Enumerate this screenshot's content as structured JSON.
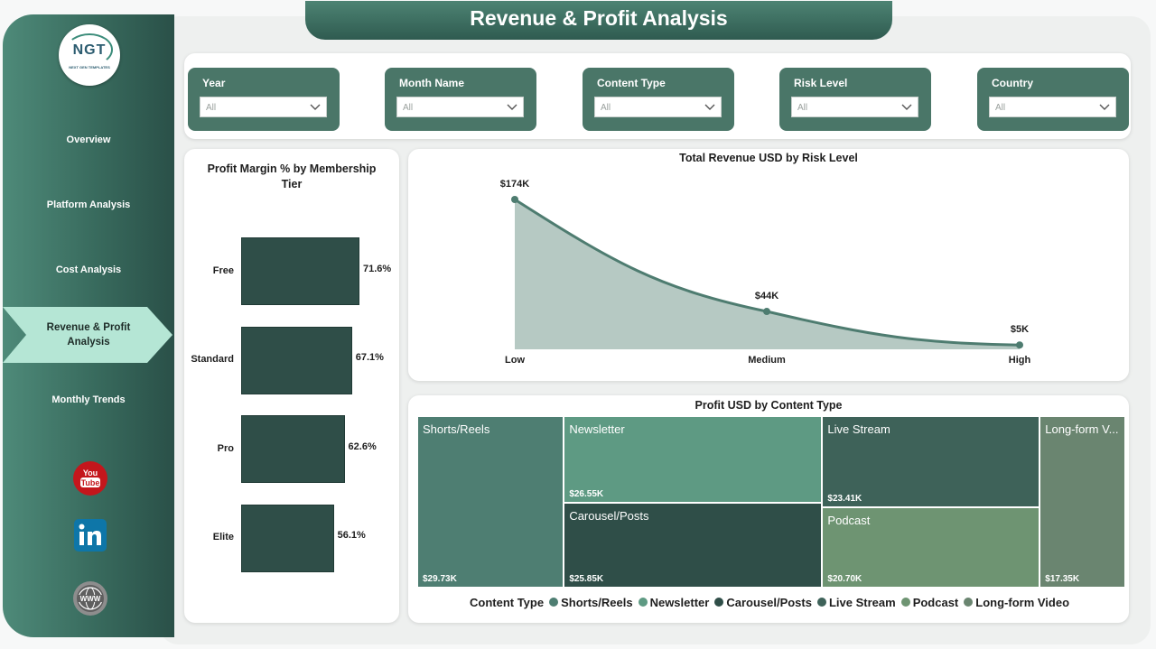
{
  "header": {
    "title": "Revenue & Profit Analysis"
  },
  "logo": {
    "text": "NGT",
    "subtext": "NEXT GEN TEMPLATES"
  },
  "nav": {
    "items": [
      "Overview",
      "Platform Analysis",
      "Cost Analysis",
      "Monthly Trends"
    ],
    "active_line1": "Revenue & Profit",
    "active_line2": "Analysis"
  },
  "social": [
    "youtube-icon",
    "linkedin-icon",
    "web-icon"
  ],
  "filters": [
    {
      "label": "Year",
      "value": "All"
    },
    {
      "label": "Month Name",
      "value": "All"
    },
    {
      "label": "Content Type",
      "value": "All"
    },
    {
      "label": "Risk Level",
      "value": "All"
    },
    {
      "label": "Country",
      "value": "All"
    }
  ],
  "colors": {
    "sidebar": "#386a5d",
    "accent": "#4a7668",
    "bar": "#2f4e48",
    "area_fill": "#b6c9c3",
    "line": "#4e7c70"
  },
  "chart_data": [
    {
      "type": "bar",
      "title_line1": "Profit Margin % by Membership",
      "title_line2": "Tier",
      "categories": [
        "Free",
        "Standard",
        "Pro",
        "Elite"
      ],
      "values": [
        71.6,
        67.1,
        62.6,
        56.1
      ],
      "labels": [
        "71.6%",
        "67.1%",
        "62.6%",
        "56.1%"
      ]
    },
    {
      "type": "area",
      "title": "Total Revenue USD by Risk Level",
      "categories": [
        "Low",
        "Medium",
        "High"
      ],
      "values": [
        174,
        44,
        5
      ],
      "labels": [
        "$174K",
        "$44K",
        "$5K"
      ]
    },
    {
      "type": "treemap",
      "title": "Profit USD by Content Type",
      "legend_title": "Content Type",
      "items": [
        {
          "name": "Shorts/Reels",
          "value": 29.73,
          "label": "$29.73K",
          "color": "#4e7e72"
        },
        {
          "name": "Newsletter",
          "value": 26.55,
          "label": "$26.55K",
          "color": "#5e9a83"
        },
        {
          "name": "Carousel/Posts",
          "value": 25.85,
          "label": "$25.85K",
          "color": "#2f4e48"
        },
        {
          "name": "Live Stream",
          "value": 23.41,
          "label": "$23.41K",
          "color": "#3e6259"
        },
        {
          "name": "Podcast",
          "value": 20.7,
          "label": "$20.70K",
          "color": "#6e9472"
        },
        {
          "name": "Long-form V...",
          "value": 17.35,
          "label": "$17.35K",
          "color": "#6a8570"
        }
      ],
      "legend": [
        {
          "name": "Shorts/Reels",
          "color": "#4e7e72"
        },
        {
          "name": "Newsletter",
          "color": "#5e9a83"
        },
        {
          "name": "Carousel/Posts",
          "color": "#2f4e48"
        },
        {
          "name": "Live Stream",
          "color": "#3e6259"
        },
        {
          "name": "Podcast",
          "color": "#6e9472"
        },
        {
          "name": "Long-form Video",
          "color": "#6a8570"
        }
      ]
    }
  ]
}
